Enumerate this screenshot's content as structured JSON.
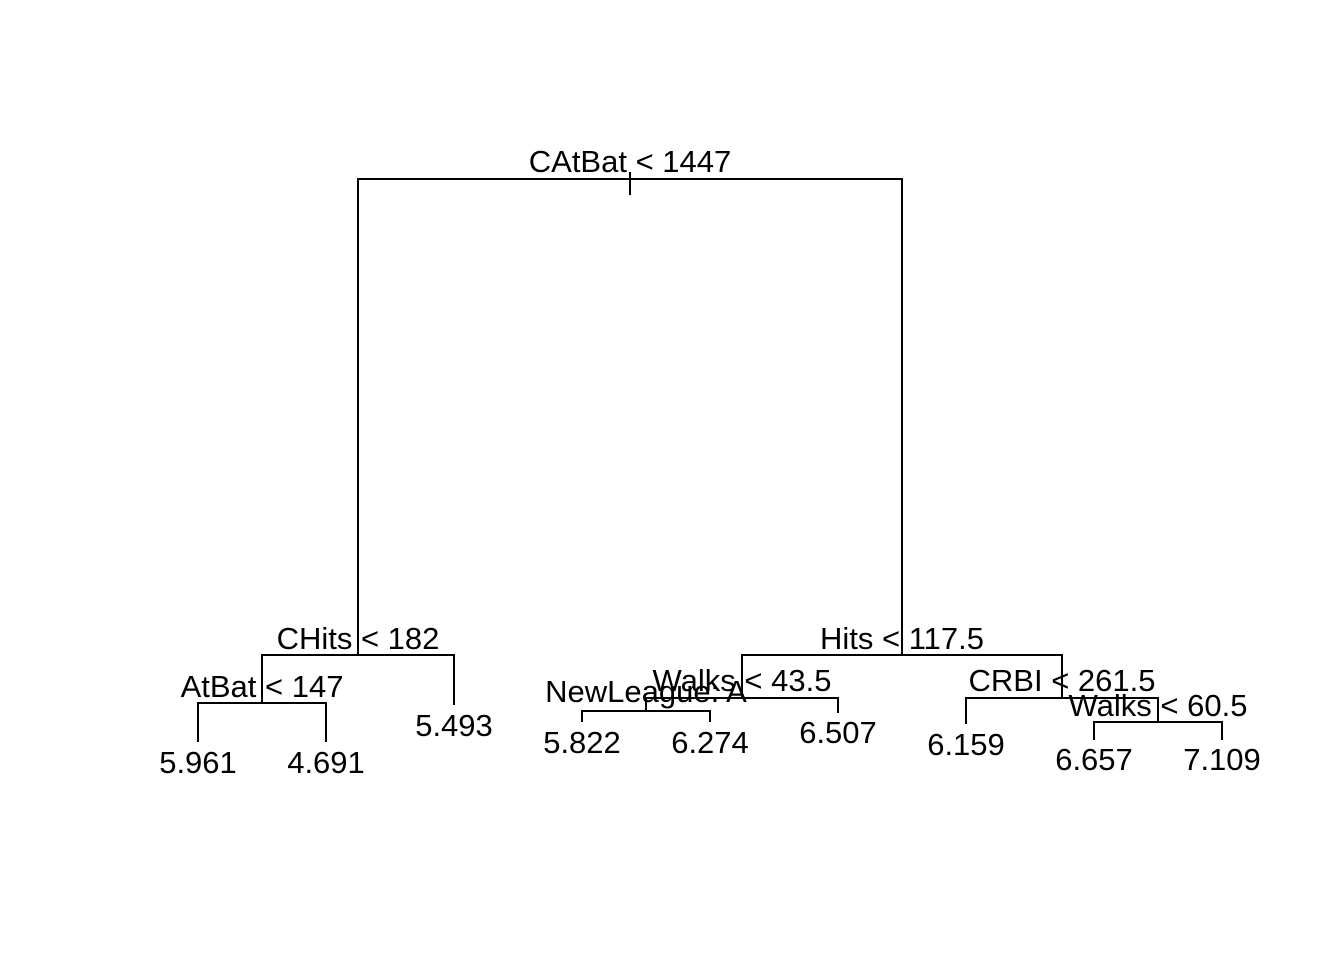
{
  "tree": {
    "splits": [
      {
        "id": "root",
        "label": "CAtBat < 1447"
      },
      {
        "id": "chits",
        "label": "CHits < 182"
      },
      {
        "id": "atbat",
        "label": "AtBat < 147"
      },
      {
        "id": "hits",
        "label": "Hits < 117.5"
      },
      {
        "id": "walks1",
        "label": "Walks < 43.5"
      },
      {
        "id": "newleague",
        "label": "NewLeague: A"
      },
      {
        "id": "crbi",
        "label": "CRBI < 261.5"
      },
      {
        "id": "walks2",
        "label": "Walks < 60.5"
      }
    ],
    "leaves": [
      {
        "id": "leaf1",
        "value": "5.961"
      },
      {
        "id": "leaf2",
        "value": "4.691"
      },
      {
        "id": "leaf3",
        "value": "5.493"
      },
      {
        "id": "leaf4",
        "value": "5.822"
      },
      {
        "id": "leaf5",
        "value": "6.274"
      },
      {
        "id": "leaf6",
        "value": "6.507"
      },
      {
        "id": "leaf7",
        "value": "6.159"
      },
      {
        "id": "leaf8",
        "value": "6.657"
      },
      {
        "id": "leaf9",
        "value": "7.109"
      }
    ]
  }
}
